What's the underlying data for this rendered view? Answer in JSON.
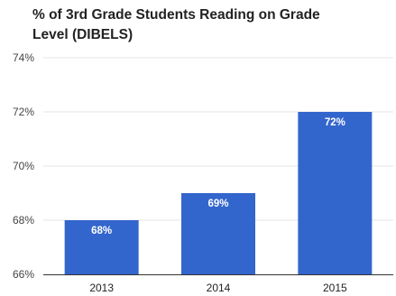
{
  "chart_data": {
    "type": "bar",
    "title_lines": [
      "% of 3rd Grade Students Reading on Grade",
      "Level (DIBELS)"
    ],
    "categories": [
      "2013",
      "2014",
      "2015"
    ],
    "values": [
      68,
      69,
      72
    ],
    "data_labels": [
      "68%",
      "69%",
      "72%"
    ],
    "ylim": [
      66,
      74
    ],
    "yticks": [
      66,
      68,
      70,
      72,
      74
    ],
    "ytick_labels": [
      "66%",
      "68%",
      "70%",
      "72%",
      "74%"
    ],
    "grid": true,
    "legend": "none",
    "bar_color": "#3366cc",
    "grid_color": "#e6e6e6",
    "baseline_color": "#333333"
  }
}
